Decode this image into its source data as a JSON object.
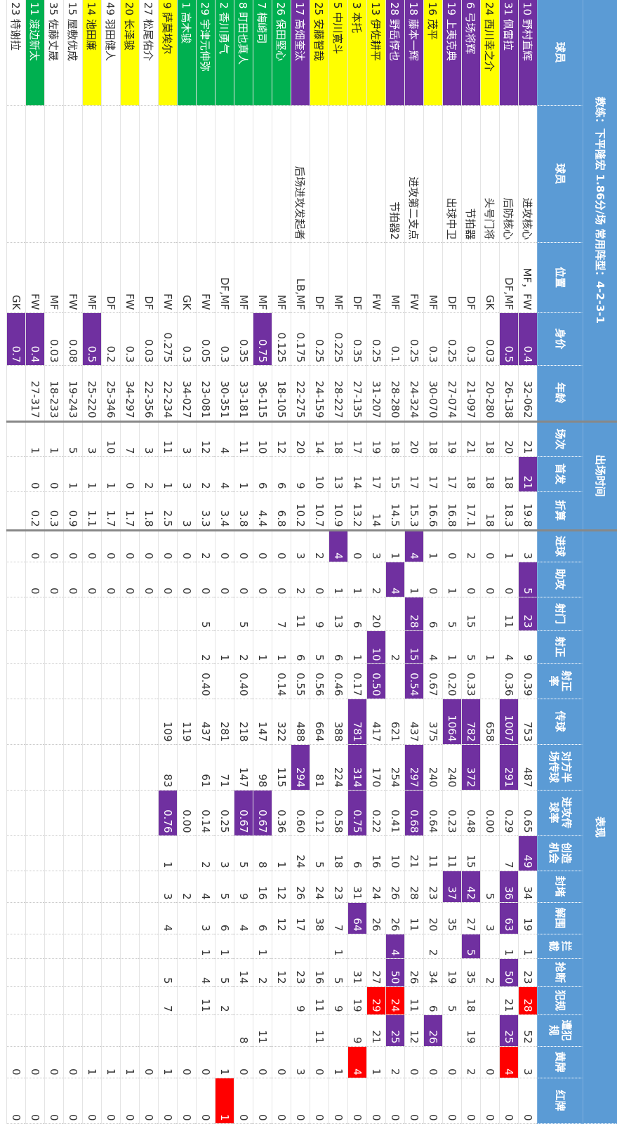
{
  "title": "教练：下平隆宏 1.86分/场 常用阵型：4-2-3-1",
  "groups": [
    {
      "label": "出场时间",
      "from": 5,
      "to": 7
    },
    {
      "label": "表现",
      "from": 8,
      "to": 24
    }
  ],
  "columns": [
    "球员",
    "球员",
    "位置",
    "身价",
    "年龄",
    "场次",
    "首发",
    "折算",
    "进球",
    "助攻",
    "射门",
    "射正",
    "射正率",
    "传球",
    "对方半场传球",
    "进攻传球率",
    "创造机会",
    "封堵",
    "解围",
    "拦截",
    "抢断",
    "犯规",
    "遭犯规",
    "黄牌",
    "红牌"
  ],
  "rows": [
    {
      "cells": [
        "10 野村直辉",
        "进攻核心",
        "MF，FW",
        "0.4",
        "32-062",
        "21",
        "21",
        "19.8",
        "3",
        "5",
        "23",
        "9",
        "0.39",
        "753",
        "487",
        "0.65",
        "49",
        "34",
        "19",
        "1",
        "23",
        "28",
        "52",
        "3",
        "0"
      ],
      "highlights": [
        {
          "column": 0,
          "color": "#7030a0"
        },
        {
          "column": 3,
          "color": "#7030a0"
        },
        {
          "column": 6,
          "color": "#7030a0"
        },
        {
          "column": 9,
          "color": "#7030a0"
        },
        {
          "column": 10,
          "color": "#7030a0"
        },
        {
          "column": 16,
          "color": "#7030a0"
        },
        {
          "column": 21,
          "color": "#ff0000"
        }
      ]
    },
    {
      "cells": [
        "31 佩雷拉",
        "后防核心",
        "DF,MF",
        "0.5",
        "26-138",
        "20",
        "18",
        "18.3",
        "1",
        "0",
        "11",
        "4",
        "0.36",
        "1007",
        "291",
        "0.29",
        "7",
        "36",
        "63",
        "1",
        "50",
        "21",
        "25",
        "4",
        "0"
      ],
      "highlights": [
        {
          "column": 0,
          "color": "#7030a0"
        },
        {
          "column": 3,
          "color": "#7030a0"
        },
        {
          "column": 13,
          "color": "#7030a0"
        },
        {
          "column": 14,
          "color": "#7030a0"
        },
        {
          "column": 17,
          "color": "#7030a0"
        },
        {
          "column": 18,
          "color": "#7030a0"
        },
        {
          "column": 20,
          "color": "#7030a0"
        },
        {
          "column": 22,
          "color": "#7030a0"
        },
        {
          "column": 23,
          "color": "#ff0000"
        }
      ]
    },
    {
      "cells": [
        "24 西川幸之介",
        "头号门将",
        "GK",
        "0.03",
        "20-280",
        "18",
        "18",
        "18",
        "0",
        "0",
        null,
        "1",
        null,
        "658",
        null,
        "0.00",
        null,
        "5",
        "3",
        null,
        "2",
        null,
        null,
        "0",
        "0"
      ],
      "highlights": [
        {
          "column": 0,
          "color": "#ffff00"
        }
      ]
    },
    {
      "cells": [
        "6 弓场将辉",
        "节拍器",
        "DF",
        "0.3",
        "21-097",
        "21",
        "18",
        "17.1",
        "2",
        "0",
        "15",
        "5",
        "0.33",
        "782",
        "372",
        "0.48",
        "15",
        "42",
        "27",
        "5",
        "35",
        "18",
        "19",
        "2",
        "0"
      ],
      "highlights": [
        {
          "column": 0,
          "color": "#7030a0"
        },
        {
          "column": 13,
          "color": "#7030a0"
        },
        {
          "column": 14,
          "color": "#7030a0"
        },
        {
          "column": 17,
          "color": "#7030a0"
        },
        {
          "column": 19,
          "color": "#7030a0"
        }
      ]
    },
    {
      "cells": [
        "19 上夷克典",
        "出球中卫",
        "DF",
        "0.25",
        "27-074",
        "19",
        "17",
        "16.8",
        "0",
        "1",
        "5",
        "1",
        "0.20",
        "1064",
        "240",
        "0.23",
        "11",
        "37",
        "35",
        null,
        "19",
        "5",
        null,
        "0",
        "0"
      ],
      "highlights": [
        {
          "column": 0,
          "color": "#7030a0"
        },
        {
          "column": 13,
          "color": "#7030a0"
        },
        {
          "column": 17,
          "color": "#7030a0"
        }
      ]
    },
    {
      "cells": [
        "16 茂平",
        null,
        "MF",
        "0.3",
        "30-070",
        "18",
        "17",
        "16.6",
        "1",
        "0",
        "6",
        "4",
        "0.67",
        "375",
        "240",
        "0.64",
        "11",
        "23",
        "20",
        "2",
        "34",
        "6",
        "26",
        "0",
        "0"
      ],
      "highlights": [
        {
          "column": 0,
          "color": "#ffff00"
        },
        {
          "column": 22,
          "color": "#7030a0"
        }
      ]
    },
    {
      "cells": [
        "18 藤本一辉",
        "进攻第二支点",
        "FW",
        "0.25",
        "24-324",
        "20",
        "17",
        "15.3",
        "4",
        "1",
        "28",
        "15",
        "0.54",
        "437",
        "297",
        "0.68",
        "21",
        "28",
        "11",
        null,
        "26",
        "11",
        "12",
        "0",
        "0"
      ],
      "highlights": [
        {
          "column": 0,
          "color": "#7030a0"
        },
        {
          "column": 8,
          "color": "#7030a0"
        },
        {
          "column": 10,
          "color": "#7030a0"
        },
        {
          "column": 11,
          "color": "#7030a0"
        },
        {
          "column": 12,
          "color": "#7030a0"
        },
        {
          "column": 14,
          "color": "#7030a0"
        },
        {
          "column": 15,
          "color": "#7030a0"
        }
      ]
    },
    {
      "cells": [
        "28 野岳惇也",
        "节拍器2",
        "MF",
        "0.1",
        "28-280",
        "18",
        "15",
        "14.5",
        "1",
        "4",
        null,
        "2",
        null,
        "621",
        "254",
        "0.41",
        "10",
        "26",
        "26",
        "4",
        "50",
        "24",
        "25",
        "2",
        "0"
      ],
      "highlights": [
        {
          "column": 0,
          "color": "#7030a0"
        },
        {
          "column": 9,
          "color": "#7030a0"
        },
        {
          "column": 19,
          "color": "#7030a0"
        },
        {
          "column": 20,
          "color": "#7030a0"
        },
        {
          "column": 21,
          "color": "#ff0000"
        },
        {
          "column": 22,
          "color": "#7030a0"
        }
      ]
    },
    {
      "cells": [
        "13 伊佐耕平",
        null,
        "FW",
        "0.25",
        "31-207",
        "19",
        "17",
        "14",
        "3",
        "2",
        "20",
        "10",
        "0.50",
        "417",
        "170",
        "0.22",
        "16",
        "24",
        "26",
        null,
        "27",
        "29",
        "21",
        "1",
        "0"
      ],
      "highlights": [
        {
          "column": 0,
          "color": "#ffff00"
        },
        {
          "column": 11,
          "color": "#7030a0"
        },
        {
          "column": 12,
          "color": "#7030a0"
        },
        {
          "column": 21,
          "color": "#ff0000"
        }
      ]
    },
    {
      "cells": [
        "3 本托",
        null,
        "DF",
        "0.35",
        "27-135",
        "17",
        "14",
        "13.2",
        "0",
        "1",
        "6",
        "1",
        "0.17",
        "781",
        "314",
        "0.75",
        "6",
        "31",
        "64",
        null,
        "31",
        "19",
        "9",
        "4",
        "0"
      ],
      "highlights": [
        {
          "column": 0,
          "color": "#ffff00"
        },
        {
          "column": 13,
          "color": "#7030a0"
        },
        {
          "column": 14,
          "color": "#7030a0"
        },
        {
          "column": 15,
          "color": "#7030a0"
        },
        {
          "column": 18,
          "color": "#7030a0"
        },
        {
          "column": 23,
          "color": "#ff0000"
        }
      ]
    },
    {
      "cells": [
        "5 中川寛斗",
        null,
        "MF",
        "0.225",
        "28-227",
        "18",
        "13",
        "10.9",
        "4",
        "1",
        "13",
        "6",
        "0.46",
        "388",
        "224",
        "0.58",
        "18",
        "23",
        "7",
        "1",
        "5",
        "9",
        null,
        "1",
        "0"
      ],
      "highlights": [
        {
          "column": 0,
          "color": "#ffff00"
        },
        {
          "column": 8,
          "color": "#7030a0"
        }
      ]
    },
    {
      "cells": [
        "25 安藤智哉",
        null,
        "DF",
        "0.25",
        "24-159",
        "14",
        "10",
        "10.7",
        "2",
        "0",
        "9",
        "5",
        "0.56",
        "664",
        "81",
        "0.12",
        "5",
        "24",
        "38",
        null,
        "16",
        "11",
        "11",
        "0",
        "0"
      ],
      "highlights": [
        {
          "column": 0,
          "color": "#ffff00"
        }
      ]
    },
    {
      "cells": [
        "17 高畑奎汰",
        "后场进攻发起者",
        "LB,MF",
        "0.175",
        "22-275",
        "20",
        "9",
        "10.2",
        "3",
        "2",
        "11",
        "6",
        "0.55",
        "488",
        "294",
        "0.60",
        "24",
        "26",
        "17",
        null,
        "23",
        "9",
        null,
        "3",
        "0"
      ],
      "highlights": [
        {
          "column": 0,
          "color": "#7030a0"
        },
        {
          "column": 14,
          "color": "#7030a0"
        }
      ]
    },
    {
      "cells": [
        "26 保田堅心",
        null,
        "MF",
        "0.125",
        "18-105",
        "12",
        "6",
        "6.8",
        "0",
        "0",
        "7",
        "1",
        "0.14",
        "322",
        "115",
        "0.36",
        "1",
        "12",
        "12",
        null,
        "12",
        null,
        null,
        "0",
        "0"
      ],
      "highlights": [
        {
          "column": 0,
          "color": "#00b050"
        }
      ]
    },
    {
      "cells": [
        "7 梅崎司",
        null,
        "MF",
        "0.75",
        "36-115",
        "10",
        "6",
        "4.4",
        "0",
        "0",
        null,
        "1",
        null,
        "147",
        "98",
        "0.67",
        "8",
        "16",
        "6",
        "1",
        "2",
        null,
        "11",
        "0",
        "0"
      ],
      "highlights": [
        {
          "column": 0,
          "color": "#00b050"
        },
        {
          "column": 3,
          "color": "#7030a0"
        },
        {
          "column": 15,
          "color": "#7030a0"
        }
      ]
    },
    {
      "cells": [
        "8 町田也真人",
        null,
        "MF",
        "0.35",
        "33-181",
        "11",
        "1",
        "3.8",
        "0",
        "0",
        "5",
        "2",
        "0.40",
        "218",
        "147",
        "0.67",
        "5",
        "9",
        "4",
        null,
        "14",
        null,
        "8",
        "0",
        "0"
      ],
      "highlights": [
        {
          "column": 0,
          "color": "#00b050"
        },
        {
          "column": 15,
          "color": "#7030a0"
        }
      ]
    },
    {
      "cells": [
        "2 香川勇气",
        null,
        "DF,MF",
        "0.3",
        "30-351",
        "4",
        "4",
        "3.4",
        "0",
        "0",
        null,
        "1",
        null,
        "281",
        "71",
        "0.25",
        "3",
        "5",
        "6",
        "1",
        "5",
        "2",
        null,
        "1",
        "1"
      ],
      "highlights": [
        {
          "column": 0,
          "color": "#00b050"
        },
        {
          "column": 24,
          "color": "#ff0000"
        }
      ]
    },
    {
      "cells": [
        "29 宇津元伸弥",
        null,
        "FW",
        "0.05",
        "23-081",
        "12",
        "2",
        "3.3",
        "2",
        "0",
        "5",
        "2",
        "0.40",
        "437",
        "61",
        "0.14",
        "2",
        "4",
        "3",
        "1",
        "4",
        "11",
        null,
        "0",
        "0"
      ],
      "highlights": [
        {
          "column": 0,
          "color": "#00b050"
        }
      ]
    },
    {
      "cells": [
        "1 高木骏",
        null,
        "GK",
        "0.3",
        "34-027",
        "3",
        "3",
        "3",
        "0",
        "0",
        null,
        null,
        null,
        "119",
        null,
        "0.00",
        null,
        "2",
        null,
        null,
        null,
        null,
        null,
        "0",
        "0"
      ],
      "highlights": [
        {
          "column": 0,
          "color": "#00b050"
        }
      ]
    },
    {
      "cells": [
        "9 萨莫埃尔",
        null,
        "FW",
        "0.275",
        "22-234",
        "11",
        "1",
        "2.5",
        "0",
        "0",
        null,
        null,
        null,
        "109",
        "83",
        "0.76",
        "1",
        "3",
        "4",
        null,
        "5",
        "7",
        null,
        "1",
        "0"
      ],
      "highlights": [
        {
          "column": 0,
          "color": "#ffff00"
        },
        {
          "column": 15,
          "color": "#7030a0"
        }
      ]
    },
    {
      "cells": [
        "27 松尾佑介",
        null,
        "DF",
        "0.03",
        "22-356",
        "3",
        "2",
        "1.8",
        "0",
        "0",
        null,
        null,
        null,
        null,
        null,
        null,
        null,
        null,
        null,
        null,
        null,
        null,
        null,
        "0",
        "0"
      ],
      "highlights": []
    },
    {
      "cells": [
        "20 长泽骏",
        null,
        "FW",
        "0.3",
        "34-297",
        "7",
        "0",
        "1.7",
        "0",
        "0",
        null,
        null,
        null,
        null,
        null,
        null,
        null,
        null,
        null,
        null,
        null,
        null,
        null,
        "1",
        "0"
      ],
      "highlights": [
        {
          "column": 0,
          "color": "#ffff00"
        }
      ]
    },
    {
      "cells": [
        "49 羽田健人",
        null,
        "DF",
        "0.2",
        "25-346",
        "10",
        "1",
        "1.7",
        "0",
        "0",
        null,
        null,
        null,
        null,
        null,
        null,
        null,
        null,
        null,
        null,
        null,
        null,
        null,
        "1",
        "0"
      ],
      "highlights": []
    },
    {
      "cells": [
        "14 池田廉",
        null,
        "MF",
        "0.5",
        "25-220",
        "3",
        "1",
        "1.1",
        "0",
        "0",
        null,
        null,
        null,
        null,
        null,
        null,
        null,
        null,
        null,
        null,
        null,
        null,
        null,
        "1",
        "0"
      ],
      "highlights": [
        {
          "column": 0,
          "color": "#ffff00"
        },
        {
          "column": 3,
          "color": "#7030a0"
        }
      ]
    },
    {
      "cells": [
        "15 屋敷优成",
        null,
        "FW",
        "0.08",
        "19-243",
        "5",
        "1",
        "0.9",
        "0",
        "0",
        null,
        null,
        null,
        null,
        null,
        null,
        null,
        null,
        null,
        null,
        null,
        null,
        null,
        "0",
        "0"
      ],
      "highlights": []
    },
    {
      "cells": [
        "35 佐藤丈晟",
        null,
        "MF",
        "0.03",
        "18-233",
        "1",
        "0",
        "0.3",
        "0",
        "0",
        null,
        null,
        null,
        null,
        null,
        null,
        null,
        null,
        null,
        null,
        null,
        null,
        null,
        "0",
        "0"
      ],
      "highlights": []
    },
    {
      "cells": [
        "11 渡边新太",
        null,
        "FW",
        "0.4",
        "27-317",
        "1",
        "0",
        "0.2",
        "0",
        "0",
        null,
        null,
        null,
        null,
        null,
        null,
        null,
        null,
        null,
        null,
        null,
        null,
        null,
        "0",
        "0"
      ],
      "highlights": [
        {
          "column": 0,
          "color": "#00b050"
        },
        {
          "column": 3,
          "color": "#7030a0"
        }
      ]
    },
    {
      "cells": [
        "23 特谢拉",
        null,
        "GK",
        "0.7",
        null,
        null,
        null,
        null,
        null,
        null,
        null,
        null,
        null,
        null,
        null,
        null,
        null,
        null,
        null,
        null,
        null,
        null,
        null,
        "0",
        "0"
      ],
      "highlights": [
        {
          "column": 3,
          "color": "#7030a0"
        }
      ]
    }
  ]
}
